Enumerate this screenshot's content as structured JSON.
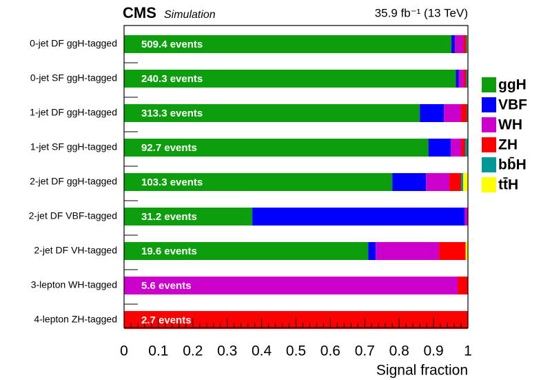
{
  "chart_data": {
    "type": "stacked-barh",
    "title": "CMS",
    "subtitle": "Simulation",
    "lumi": "35.9 fb⁻¹ (13 TeV)",
    "x_label": "Signal fraction",
    "categories": [
      "0-jet DF ggH-tagged",
      "0-jet SF ggH-tagged",
      "1-jet DF ggH-tagged",
      "1-jet SF ggH-tagged",
      "2-jet DF ggH-tagged",
      "2-jet DF VBF-tagged",
      "2-jet DF VH-tagged",
      "3-lepton WH-tagged",
      "4-lepton ZH-tagged"
    ],
    "bar_labels": [
      "509.4 events",
      "240.3 events",
      "313.3 events",
      "92.7 events",
      "103.3 events",
      "31.2 events",
      "19.6 events",
      "5.6 events",
      "2.7 events"
    ],
    "series": [
      {
        "name": "ggH",
        "color": "#0c9e0c",
        "values": [
          0.952,
          0.965,
          0.86,
          0.885,
          0.78,
          0.373,
          0.71,
          0,
          0
        ]
      },
      {
        "name": "VBF",
        "color": "#0000ff",
        "values": [
          0.01,
          0.008,
          0.07,
          0.065,
          0.098,
          0.617,
          0.022,
          0,
          0
        ]
      },
      {
        "name": "WH",
        "color": "#cc00cc",
        "values": [
          0.025,
          0.015,
          0.05,
          0.03,
          0.068,
          0.008,
          0.184,
          0.97,
          0
        ]
      },
      {
        "name": "ZH",
        "color": "#ff0000",
        "values": [
          0.008,
          0.007,
          0.017,
          0.012,
          0.034,
          0.002,
          0.077,
          0.03,
          1
        ]
      },
      {
        "name": "bb̄H",
        "color": "#009999",
        "values": [
          0.003,
          0.005,
          0.003,
          0.008,
          0.006,
          0,
          0,
          0,
          0
        ]
      },
      {
        "name": "tt̄H",
        "color": "#ffff00",
        "values": [
          0.002,
          0,
          0,
          0,
          0.014,
          0,
          0.007,
          0,
          0
        ]
      }
    ],
    "xlim": [
      0,
      1
    ],
    "xticks": [
      0,
      0.1,
      0.2,
      0.3,
      0.4,
      0.5,
      0.6,
      0.7,
      0.8,
      0.9,
      1
    ],
    "legend": "right"
  }
}
